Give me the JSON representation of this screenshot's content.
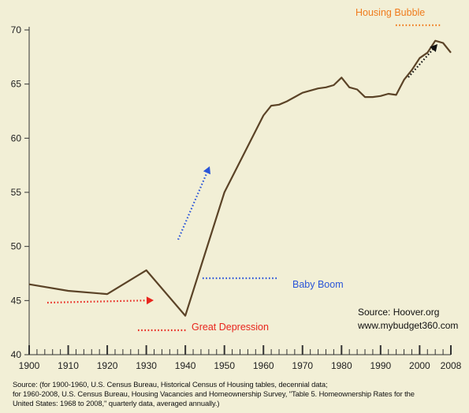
{
  "chart_data": {
    "type": "line",
    "title": "",
    "xlabel": "",
    "ylabel": "",
    "xlim": [
      1900,
      2008
    ],
    "ylim": [
      40,
      70
    ],
    "x_ticks": [
      1900,
      1910,
      1920,
      1930,
      1940,
      1950,
      1960,
      1970,
      1980,
      1990,
      2000,
      2008
    ],
    "y_ticks": [
      40,
      45,
      50,
      55,
      60,
      65,
      70
    ],
    "grid": false,
    "series": [
      {
        "color": "#5b4327",
        "points": [
          [
            1900,
            46.5
          ],
          [
            1910,
            45.9
          ],
          [
            1920,
            45.6
          ],
          [
            1930,
            47.8
          ],
          [
            1940,
            43.6
          ],
          [
            1950,
            55.0
          ],
          [
            1960,
            62.1
          ],
          [
            1962,
            63.0
          ],
          [
            1964,
            63.1
          ],
          [
            1966,
            63.4
          ],
          [
            1968,
            63.8
          ],
          [
            1970,
            64.2
          ],
          [
            1972,
            64.4
          ],
          [
            1974,
            64.6
          ],
          [
            1976,
            64.7
          ],
          [
            1978,
            64.9
          ],
          [
            1980,
            65.6
          ],
          [
            1982,
            64.7
          ],
          [
            1984,
            64.5
          ],
          [
            1986,
            63.8
          ],
          [
            1988,
            63.8
          ],
          [
            1990,
            63.9
          ],
          [
            1992,
            64.1
          ],
          [
            1994,
            64.0
          ],
          [
            1996,
            65.4
          ],
          [
            1998,
            66.3
          ],
          [
            2000,
            67.4
          ],
          [
            2002,
            67.9
          ],
          [
            2004,
            69.0
          ],
          [
            2006,
            68.8
          ],
          [
            2008,
            67.9
          ]
        ]
      }
    ],
    "annotations": [
      {
        "text": "Housing Bubble",
        "color": "#f07c1e"
      },
      {
        "text": "Baby Boom",
        "color": "#2a55d8"
      },
      {
        "text": "Great Depression",
        "color": "#e8251d"
      }
    ],
    "source_note": [
      "Source: Hoover.org",
      "www.mybudget360.com"
    ]
  },
  "footer": {
    "lines": [
      "Source: (for 1900-1960, U.S. Census Bureau, Historical Census of Housing tables, decennial data;",
      "for 1960-2008, U.S. Census Bureau, Housing Vacancies and Homeownership Survey,  \"Table 5. Homeownership Rates for the",
      "United States:  1968 to 2008,\" quarterly data, averaged annually.)"
    ]
  }
}
